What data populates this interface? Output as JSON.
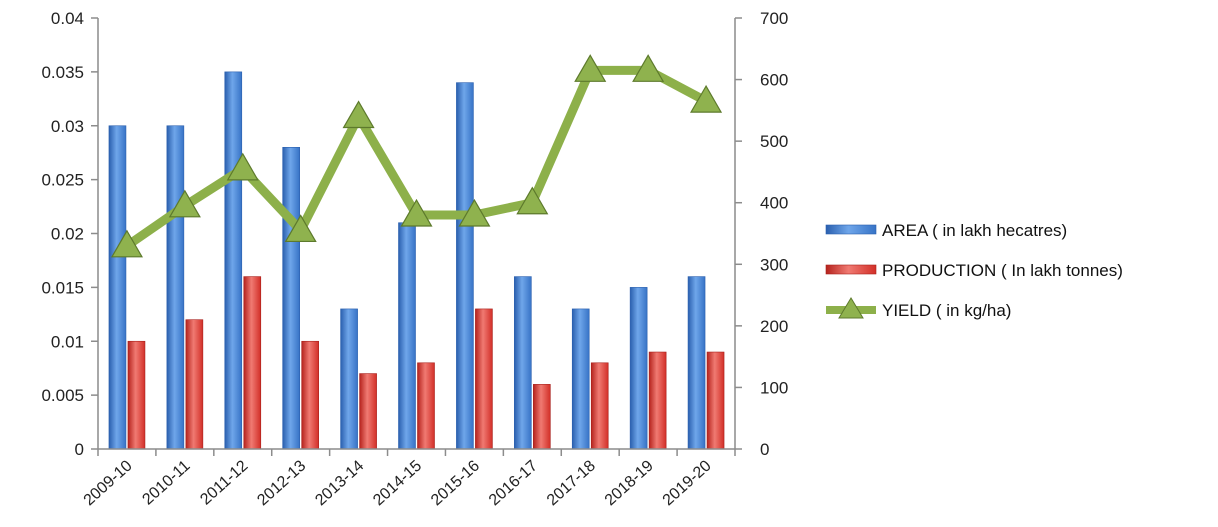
{
  "chart_data": {
    "type": "bar",
    "categories": [
      "2009-10",
      "2010-11",
      "2011-12",
      "2012-13",
      "2013-14",
      "2014-15",
      "2015-16",
      "2016-17",
      "2017-18",
      "2018-19",
      "2019-20"
    ],
    "series": [
      {
        "name": "AREA ( in lakh hecatres)",
        "kind": "bar",
        "axis": "left",
        "color": "#3f7fd4",
        "values": [
          0.03,
          0.03,
          0.035,
          0.028,
          0.013,
          0.021,
          0.034,
          0.016,
          0.013,
          0.015,
          0.016
        ]
      },
      {
        "name": "PRODUCTION ( In lakh tonnes)",
        "kind": "bar",
        "axis": "left",
        "color": "#d9332e",
        "values": [
          0.01,
          0.012,
          0.016,
          0.01,
          0.007,
          0.008,
          0.013,
          0.006,
          0.008,
          0.009,
          0.009
        ]
      },
      {
        "name": "YIELD ( in kg/ha)",
        "kind": "line",
        "axis": "right",
        "color": "#8db04a",
        "marker": "triangle",
        "values": [
          330,
          395,
          455,
          355,
          540,
          380,
          380,
          400,
          615,
          615,
          565
        ]
      }
    ],
    "y_left": {
      "ylim": [
        0,
        0.04
      ],
      "ticks": [
        "0",
        "0.005",
        "0.01",
        "0.015",
        "0.02",
        "0.025",
        "0.03",
        "0.035",
        "0.04"
      ]
    },
    "y_right": {
      "ylim": [
        0,
        700
      ],
      "ticks": [
        "0",
        "100",
        "200",
        "300",
        "400",
        "500",
        "600",
        "700"
      ]
    },
    "grid": false,
    "legend_position": "right"
  }
}
